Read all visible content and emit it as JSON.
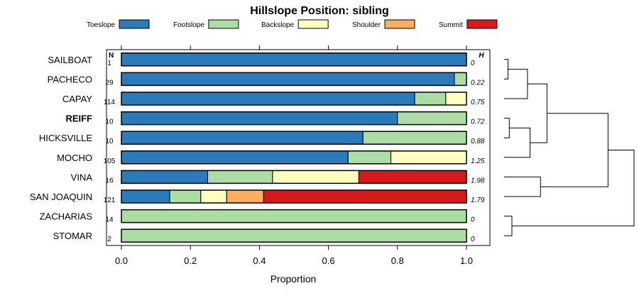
{
  "chart_data": {
    "type": "bar",
    "orientation": "horizontal",
    "stacked": true,
    "title": "Hillslope Position: sibling",
    "xlabel": "Proportion",
    "xlim": [
      0,
      1
    ],
    "x_ticks": [
      "0.0",
      "0.2",
      "0.4",
      "0.6",
      "0.8",
      "1.0"
    ],
    "legend": {
      "placement": "top",
      "entries": [
        {
          "name": "Toeslope",
          "color": "#2b7bba"
        },
        {
          "name": "Footslope",
          "color": "#abdda4"
        },
        {
          "name": "Backslope",
          "color": "#ffffbf"
        },
        {
          "name": "Shoulder",
          "color": "#fdae61"
        },
        {
          "name": "Summit",
          "color": "#d7191c"
        }
      ]
    },
    "n_header": "N",
    "h_header": "H",
    "rows": [
      {
        "name": "SAILBOAT",
        "bold": false,
        "n": "1",
        "h": "0",
        "values": [
          1.0,
          0,
          0,
          0,
          0
        ]
      },
      {
        "name": "PACHECO",
        "bold": false,
        "n": "29",
        "h": "0.22",
        "values": [
          0.965,
          0.035,
          0,
          0,
          0
        ]
      },
      {
        "name": "CAPAY",
        "bold": false,
        "n": "114",
        "h": "0.75",
        "values": [
          0.85,
          0.09,
          0.06,
          0,
          0
        ]
      },
      {
        "name": "REIFF",
        "bold": true,
        "n": "10",
        "h": "0.72",
        "values": [
          0.8,
          0.2,
          0,
          0,
          0
        ]
      },
      {
        "name": "HICKSVILLE",
        "bold": false,
        "n": "10",
        "h": "0.88",
        "values": [
          0.7,
          0.3,
          0,
          0,
          0
        ]
      },
      {
        "name": "MOCHO",
        "bold": false,
        "n": "105",
        "h": "1.25",
        "values": [
          0.657,
          0.124,
          0.219,
          0,
          0
        ]
      },
      {
        "name": "VINA",
        "bold": false,
        "n": "16",
        "h": "1.98",
        "values": [
          0.25,
          0.188,
          0.25,
          0,
          0.312
        ]
      },
      {
        "name": "SAN JOAQUIN",
        "bold": false,
        "n": "121",
        "h": "1.79",
        "values": [
          0.14,
          0.09,
          0.075,
          0.107,
          0.588
        ]
      },
      {
        "name": "ZACHARIAS",
        "bold": false,
        "n": "14",
        "h": "0",
        "values": [
          0,
          1.0,
          0,
          0,
          0
        ]
      },
      {
        "name": "STOMAR",
        "bold": false,
        "n": "2",
        "h": "0",
        "values": [
          0,
          1.0,
          0,
          0,
          0
        ]
      }
    ],
    "dendrogram": {
      "merges": [
        {
          "a": "SAILBOAT",
          "b": "PACHECO",
          "height": 0.03
        },
        {
          "a": "REIFF",
          "b": "HICKSVILLE",
          "height": 0.04
        },
        {
          "a": "ZACHARIAS",
          "b": "STOMAR",
          "height": 0.06
        },
        {
          "a": "c0",
          "b": "CAPAY",
          "height": 0.18
        },
        {
          "a": "c1",
          "b": "MOCHO",
          "height": 0.2
        },
        {
          "a": "VINA",
          "b": "SAN JOAQUIN",
          "height": 0.28
        },
        {
          "a": "c3",
          "b": "c4",
          "height": 0.33
        },
        {
          "a": "c6",
          "b": "c5",
          "height": 0.8
        },
        {
          "a": "c7",
          "b": "c2",
          "height": 1.0
        }
      ]
    }
  }
}
